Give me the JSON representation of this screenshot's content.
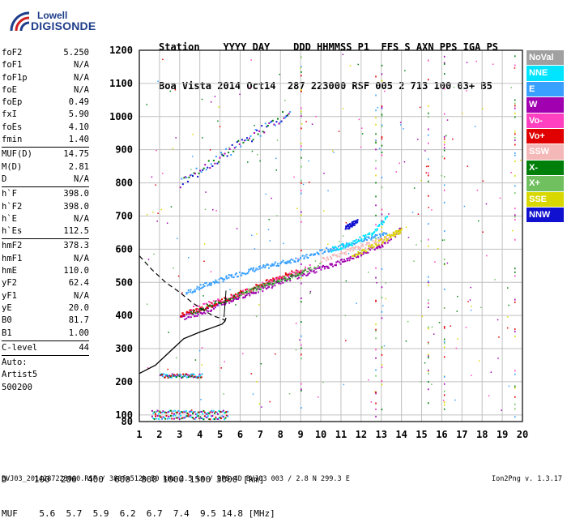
{
  "logo": {
    "line1": "Lowell",
    "line2": "DIGISONDE"
  },
  "header": {
    "labels": "Station    YYYY DAY    DDD HHMMSS P1  FFS S AXN PPS IGA PS",
    "values": "Boa Vista 2014 Oct14  287 223000 RSF 005 2 713 100 03+ B5"
  },
  "params": {
    "group1": [
      {
        "name": "foF2",
        "value": "5.250"
      },
      {
        "name": "foF1",
        "value": "N/A"
      },
      {
        "name": "foF1p",
        "value": "N/A"
      },
      {
        "name": "foE",
        "value": "N/A"
      },
      {
        "name": "foEp",
        "value": "0.49"
      },
      {
        "name": "fxI",
        "value": "5.90"
      },
      {
        "name": "foEs",
        "value": "4.10"
      },
      {
        "name": "fmin",
        "value": "1.40"
      }
    ],
    "group2": [
      {
        "name": "MUF(D)",
        "value": "14.75"
      },
      {
        "name": "M(D)",
        "value": "2.81"
      },
      {
        "name": "D",
        "value": "N/A"
      }
    ],
    "group3": [
      {
        "name": "h`F",
        "value": "398.0"
      },
      {
        "name": "h`F2",
        "value": "398.0"
      },
      {
        "name": "h`E",
        "value": "N/A"
      },
      {
        "name": "h`Es",
        "value": "112.5"
      }
    ],
    "group4": [
      {
        "name": "hmF2",
        "value": "378.3"
      },
      {
        "name": "hmF1",
        "value": "N/A"
      },
      {
        "name": "hmE",
        "value": "110.0"
      },
      {
        "name": "yF2",
        "value": "62.4"
      },
      {
        "name": "yF1",
        "value": "N/A"
      },
      {
        "name": "yE",
        "value": "20.0"
      },
      {
        "name": "B0",
        "value": "81.7"
      },
      {
        "name": "B1",
        "value": "1.00"
      }
    ],
    "clevel": {
      "name": "C-level",
      "value": "44"
    },
    "auto": [
      "Auto:",
      "Artist5",
      "500200"
    ]
  },
  "legend": [
    {
      "label": "NoVal",
      "color": "#a0a0a0"
    },
    {
      "label": "NNE",
      "color": "#00e5ff"
    },
    {
      "label": "E",
      "color": "#3aa0ff"
    },
    {
      "label": "W",
      "color": "#a000b0"
    },
    {
      "label": "Vo-",
      "color": "#ff40c0"
    },
    {
      "label": "Vo+",
      "color": "#e00000"
    },
    {
      "label": "SSW",
      "color": "#f5b8b8"
    },
    {
      "label": "X-",
      "color": "#00800a"
    },
    {
      "label": "X+",
      "color": "#70c060"
    },
    {
      "label": "SSE",
      "color": "#d8d800"
    },
    {
      "label": "NNW",
      "color": "#1010d0"
    }
  ],
  "bottom": {
    "dist_row": "D     100  200  400  600  800 1000 1500 3000 [km]",
    "muf_row": "MUF    5.6  5.7  5.9  6.2  6.7  7.4  9.5 14.8 [MHz]"
  },
  "footer": "BVJ03_2014287223000.RSF / 380fx512h 50 kHz 2.5 km / DPS-4D BVJ03 003 / 2.8 N 299.3 E",
  "version": "Ion2Png v. 1.3.17",
  "chart_data": {
    "type": "scatter",
    "xlim": [
      1,
      20
    ],
    "ylim": [
      80,
      1200
    ],
    "x_ticks": [
      "1",
      "2",
      "3",
      "4",
      "5",
      "6",
      "7",
      "8",
      "9",
      "10",
      "11",
      "12",
      "13",
      "14",
      "15",
      "16",
      "17",
      "18",
      "19",
      "20"
    ],
    "y_ticks": [
      "80",
      "100",
      "200",
      "300",
      "400",
      "500",
      "600",
      "700",
      "800",
      "900",
      "1000",
      "1100",
      "1200"
    ],
    "grid": true,
    "series": [
      {
        "name": "E",
        "color": "#3aa0ff",
        "points": [
          [
            3.3,
            470
          ],
          [
            4.3,
            495
          ],
          [
            5.3,
            515
          ],
          [
            6.3,
            535
          ],
          [
            7.3,
            550
          ],
          [
            8.3,
            565
          ],
          [
            9.3,
            580
          ],
          [
            10.3,
            600
          ],
          [
            11.3,
            615
          ],
          [
            12.3,
            635
          ],
          [
            13.3,
            650
          ]
        ]
      },
      {
        "name": "NNE",
        "color": "#00e5ff",
        "points": [
          [
            10.5,
            600
          ],
          [
            11.5,
            620
          ],
          [
            12.5,
            650
          ],
          [
            13.3,
            700
          ]
        ]
      },
      {
        "name": "W",
        "color": "#a000b0",
        "points": [
          [
            3.0,
            395
          ],
          [
            4.0,
            410
          ],
          [
            5.0,
            435
          ],
          [
            6.0,
            460
          ],
          [
            7.0,
            480
          ],
          [
            8.0,
            505
          ],
          [
            9.0,
            525
          ],
          [
            10.0,
            545
          ],
          [
            11.0,
            565
          ],
          [
            12.0,
            590
          ],
          [
            13.0,
            615
          ],
          [
            14.0,
            665
          ]
        ]
      },
      {
        "name": "Vo+",
        "color": "#e00000",
        "points": [
          [
            3.0,
            405
          ],
          [
            4.0,
            420
          ],
          [
            5.0,
            445
          ],
          [
            6.0,
            470
          ],
          [
            7.0,
            495
          ],
          [
            8.0,
            520
          ],
          [
            9.0,
            540
          ]
        ]
      },
      {
        "name": "Vo-",
        "color": "#ff40c0",
        "points": [
          [
            3.5,
            420
          ],
          [
            5.5,
            460
          ],
          [
            7.5,
            505
          ],
          [
            9.5,
            550
          ]
        ]
      },
      {
        "name": "SSW",
        "color": "#f5b8b8",
        "points": [
          [
            10.0,
            570
          ],
          [
            11.0,
            590
          ],
          [
            12.0,
            610
          ],
          [
            13.0,
            630
          ],
          [
            14.0,
            660
          ]
        ]
      },
      {
        "name": "X-",
        "color": "#00800a",
        "points": [
          [
            3.5,
            410
          ],
          [
            5.5,
            455
          ],
          [
            7.5,
            500
          ],
          [
            9.5,
            540
          ]
        ]
      },
      {
        "name": "X+",
        "color": "#70c060",
        "points": [
          [
            6.0,
            470
          ],
          [
            8.0,
            510
          ],
          [
            10.0,
            555
          ]
        ]
      },
      {
        "name": "SSE",
        "color": "#d8d800",
        "points": [
          [
            11.5,
            580
          ],
          [
            12.5,
            610
          ],
          [
            13.5,
            645
          ],
          [
            14.0,
            660
          ]
        ]
      },
      {
        "name": "NNW",
        "color": "#1010d0",
        "points": [
          [
            11.2,
            665
          ],
          [
            11.5,
            675
          ],
          [
            11.8,
            690
          ]
        ]
      }
    ]
  }
}
